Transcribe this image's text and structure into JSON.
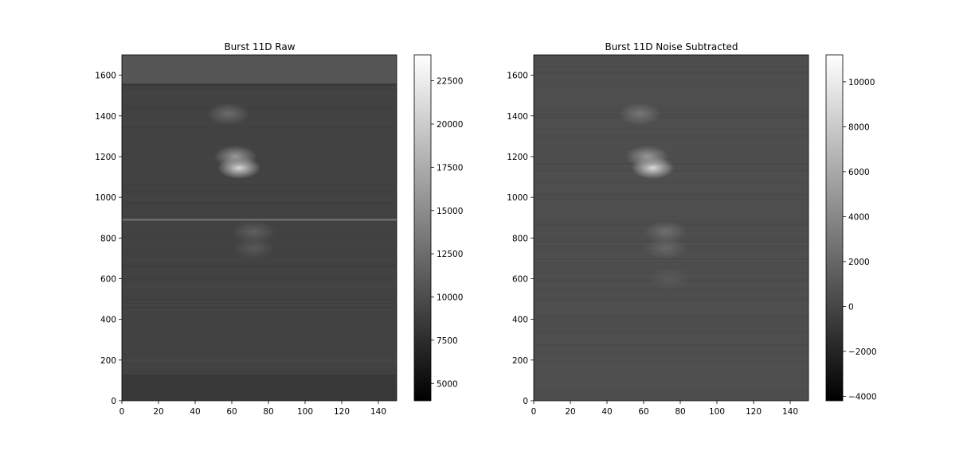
{
  "chart_data": [
    {
      "type": "heatmap",
      "title": "Burst 11D Raw",
      "xlabel": "",
      "ylabel": "",
      "xlim": [
        0,
        150
      ],
      "ylim": [
        0,
        1700
      ],
      "xticks": [
        0,
        20,
        40,
        60,
        80,
        100,
        120,
        140
      ],
      "xtick_labels": [
        "0",
        "20",
        "40",
        "60",
        "80",
        "100",
        "120",
        "140"
      ],
      "yticks": [
        0,
        200,
        400,
        600,
        800,
        1000,
        1200,
        1400,
        1600
      ],
      "ytick_labels": [
        "0",
        "200",
        "400",
        "600",
        "800",
        "1000",
        "1200",
        "1400",
        "1600"
      ],
      "colormap": "gray",
      "colorbar": {
        "vmin": 4000,
        "vmax": 24000,
        "ticks": [
          5000,
          7500,
          10000,
          12500,
          15000,
          17500,
          20000,
          22500
        ],
        "tick_labels": [
          "5000",
          "7500",
          "10000",
          "12500",
          "15000",
          "17500",
          "20000",
          "22500"
        ]
      },
      "background_level": 9200,
      "features": [
        {
          "kind": "band",
          "y_range": [
            1560,
            1700
          ],
          "level": 11000
        },
        {
          "kind": "line",
          "y": 1553,
          "level": 8500
        },
        {
          "kind": "line",
          "y": 890,
          "level": 13000
        },
        {
          "kind": "band",
          "y_range": [
            0,
            130
          ],
          "level": 8300
        },
        {
          "kind": "blob",
          "x": 64,
          "y": 1145,
          "level": 21000
        },
        {
          "kind": "blob",
          "x": 62,
          "y": 1200,
          "level": 16000
        },
        {
          "kind": "blob",
          "x": 58,
          "y": 1410,
          "level": 12500
        },
        {
          "kind": "blob",
          "x": 72,
          "y": 830,
          "level": 11500
        },
        {
          "kind": "blob",
          "x": 72,
          "y": 750,
          "level": 11000
        }
      ]
    },
    {
      "type": "heatmap",
      "title": "Burst 11D Noise Subtracted",
      "xlabel": "",
      "ylabel": "",
      "xlim": [
        0,
        150
      ],
      "ylim": [
        0,
        1700
      ],
      "xticks": [
        0,
        20,
        40,
        60,
        80,
        100,
        120,
        140
      ],
      "xtick_labels": [
        "0",
        "20",
        "40",
        "60",
        "80",
        "100",
        "120",
        "140"
      ],
      "yticks": [
        0,
        200,
        400,
        600,
        800,
        1000,
        1200,
        1400,
        1600
      ],
      "ytick_labels": [
        "0",
        "200",
        "400",
        "600",
        "800",
        "1000",
        "1200",
        "1400",
        "1600"
      ],
      "colormap": "gray",
      "colorbar": {
        "vmin": -4200,
        "vmax": 11200,
        "ticks": [
          -4000,
          -2000,
          0,
          2000,
          4000,
          6000,
          8000,
          10000
        ],
        "tick_labels": [
          "−4000",
          "−2000",
          "0",
          "2000",
          "4000",
          "6000",
          "8000",
          "10000"
        ]
      },
      "background_level": 500,
      "features": [
        {
          "kind": "blob",
          "x": 65,
          "y": 1145,
          "level": 9000
        },
        {
          "kind": "blob",
          "x": 62,
          "y": 1200,
          "level": 5000
        },
        {
          "kind": "blob",
          "x": 58,
          "y": 1410,
          "level": 3000
        },
        {
          "kind": "blob",
          "x": 72,
          "y": 830,
          "level": 2500
        },
        {
          "kind": "blob",
          "x": 72,
          "y": 750,
          "level": 2000
        },
        {
          "kind": "blob",
          "x": 74,
          "y": 600,
          "level": 1200
        }
      ]
    }
  ]
}
